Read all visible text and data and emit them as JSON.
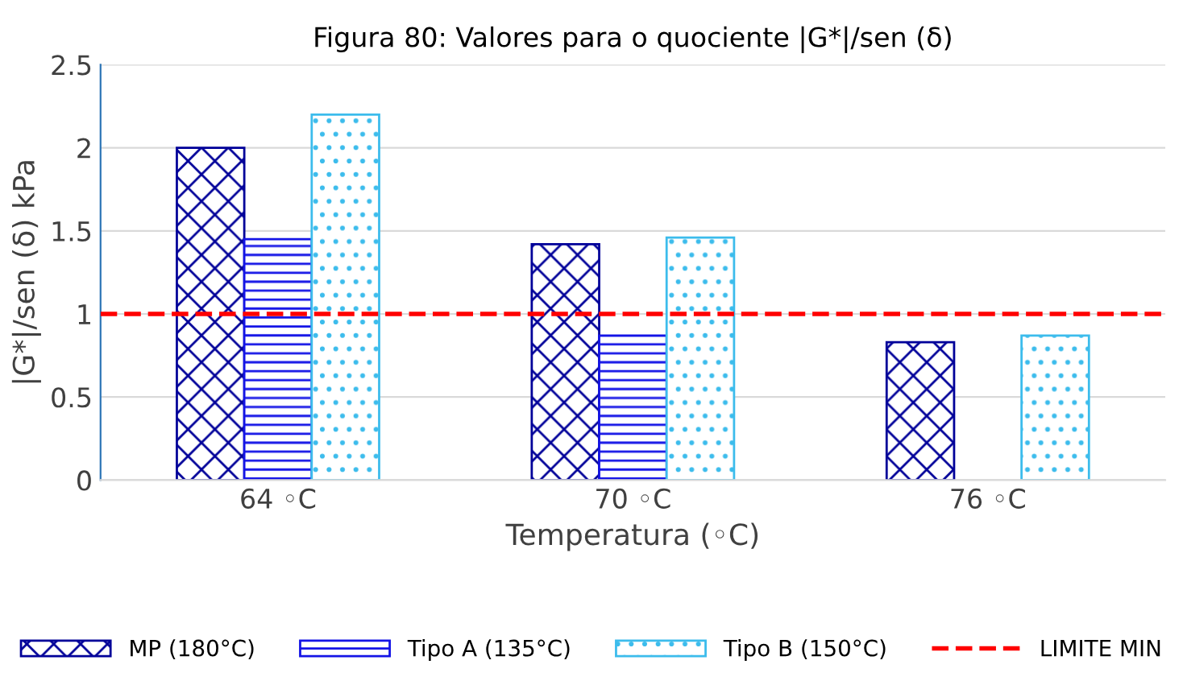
{
  "chart_data": {
    "type": "bar",
    "title": "Figura 80: Valores para o quociente |G*|/sen (δ)",
    "xlabel": "Temperatura (◦C)",
    "ylabel": "|G*|/sen (δ) kPa",
    "categories": [
      "64 ◦C",
      "70 ◦C",
      "76 ◦C"
    ],
    "series": [
      {
        "name": "MP (180°C)",
        "color": "#000099",
        "values": [
          2.0,
          1.42,
          0.83
        ]
      },
      {
        "name": "Tipo A (135°C)",
        "color": "#1414e6",
        "values": [
          1.45,
          0.87,
          null
        ]
      },
      {
        "name": "Tipo B (150°C)",
        "color": "#3cbcec",
        "values": [
          2.2,
          1.46,
          0.87
        ]
      }
    ],
    "ylim": [
      0,
      2.5
    ],
    "yticks": [
      0,
      0.5,
      1,
      1.5,
      2,
      2.5
    ],
    "grid": "y",
    "legend": "bottom",
    "ref_lines": [
      {
        "axis": "y",
        "value": 1,
        "label": "LIMITE MIN",
        "color": "#ff0000",
        "line_style": "dashed"
      }
    ]
  }
}
